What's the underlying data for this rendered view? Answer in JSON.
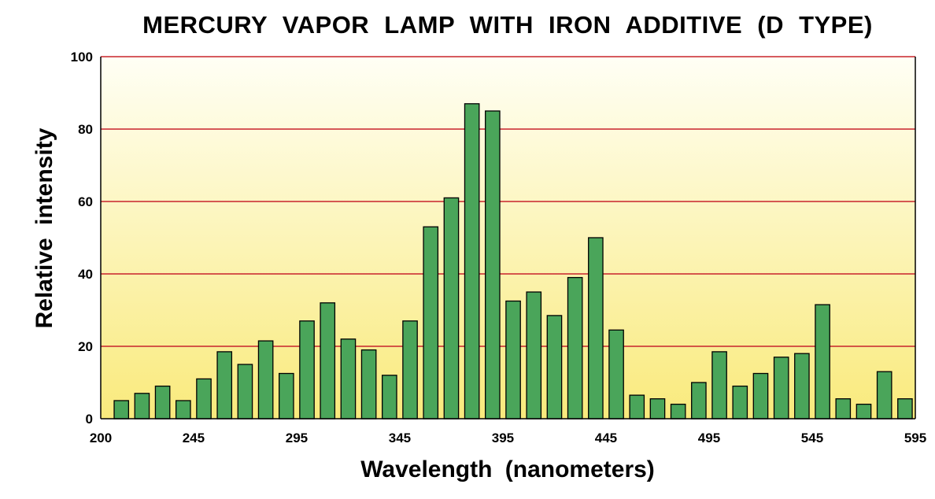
{
  "chart_data": {
    "type": "bar",
    "title": "MERCURY VAPOR LAMP WITH IRON ADDITIVE (D TYPE)",
    "xlabel": "Wavelength (nanometers)",
    "ylabel": "Relative intensity",
    "xlim": [
      200,
      595
    ],
    "ylim": [
      0,
      100
    ],
    "x_ticks": [
      "200",
      "245",
      "295",
      "345",
      "395",
      "445",
      "495",
      "545",
      "595"
    ],
    "x_tick_values": [
      200,
      245,
      295,
      345,
      395,
      445,
      495,
      545,
      595
    ],
    "y_ticks": [
      "0",
      "20",
      "40",
      "60",
      "80",
      "100"
    ],
    "y_tick_values": [
      0,
      20,
      40,
      60,
      80,
      100
    ],
    "grid": true,
    "bar_width_nm": 7,
    "x": [
      215,
      225,
      235,
      245,
      255,
      265,
      275,
      285,
      295,
      305,
      315,
      325,
      335,
      345,
      355,
      365,
      375,
      385,
      395,
      405,
      415,
      425,
      435,
      445,
      455,
      465,
      475,
      485,
      495,
      505,
      515,
      525,
      535,
      545,
      555,
      565,
      575,
      585,
      595
    ],
    "values": [
      5,
      7,
      9,
      5,
      11,
      18.5,
      15,
      21.5,
      12.5,
      27,
      32,
      22,
      19,
      12,
      27,
      53,
      61,
      87,
      85,
      32.5,
      35,
      28.5,
      39,
      50,
      24.5,
      6.5,
      5.5,
      4,
      10,
      18.5,
      9,
      12.5,
      17,
      18,
      31.5,
      5.5,
      4,
      13,
      5.5
    ],
    "colors": {
      "bar_fill": "#4aa55a",
      "bar_stroke": "#000000",
      "gridline": "#c8232c",
      "background_top": "#fffff5",
      "background_bottom": "#f9ea7c"
    }
  }
}
